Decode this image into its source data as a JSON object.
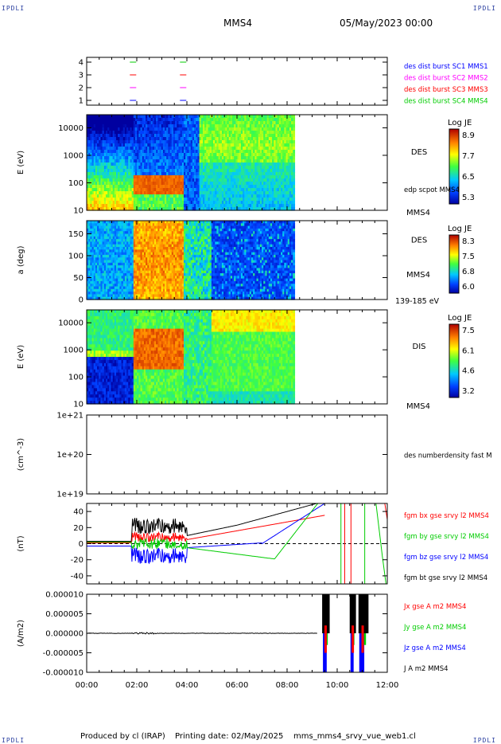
{
  "header": {
    "corner_tl": "IPDLI",
    "corner_tr": "IPDLI",
    "corner_bl": "IPDLI",
    "corner_br": "IPDLI",
    "spacecraft": "MMS4",
    "date": "05/May/2023 00:00"
  },
  "footer": {
    "produced_by": "Produced by cl (IRAP)",
    "printing_date": "Printing date: 02/May/2025",
    "file": "mms_mms4_srvy_vue_web1.cl"
  },
  "chart_data": [
    {
      "type": "line",
      "panel": "burst-availability",
      "yticks": [
        "4",
        "3",
        "2",
        "1"
      ],
      "legend": [
        {
          "label": "des dist burst SC1 MMS1",
          "color": "#0000ff"
        },
        {
          "label": "des dist burst SC2 MMS2",
          "color": "#ff00ff"
        },
        {
          "label": "des dist burst SC3 MMS3",
          "color": "#ff0000"
        },
        {
          "label": "des dist burst SC4 MMS4",
          "color": "#00cc00"
        }
      ],
      "intervals_hours": [
        1.85,
        3.85
      ]
    },
    {
      "type": "heatmap",
      "panel": "des-energy",
      "ylabel": "E (eV)",
      "yticks": [
        "10000",
        "1000",
        "100",
        "10"
      ],
      "ylim": [
        10,
        30000
      ],
      "yscale": "log",
      "right_label": "DES",
      "right_label2": "edp scpot MMS4",
      "right_label3": "MMS4",
      "colorbar": {
        "title": "Log JE",
        "ticks": [
          "8.9",
          "7.7",
          "6.5",
          "5.3"
        ],
        "min": 5.3,
        "max": 8.9
      },
      "data_end_hour": 8.3
    },
    {
      "type": "heatmap",
      "panel": "des-pitch-angle",
      "ylabel": "a (deg)",
      "yticks": [
        "150",
        "100",
        "50",
        "0"
      ],
      "ylim": [
        0,
        180
      ],
      "right_label": "DES",
      "right_label2": "MMS4",
      "right_label3": "139-185 eV",
      "colorbar": {
        "title": "Log JE",
        "ticks": [
          "8.3",
          "7.5",
          "6.8",
          "6.0"
        ],
        "min": 6.0,
        "max": 8.3
      },
      "data_end_hour": 8.3
    },
    {
      "type": "heatmap",
      "panel": "dis-energy",
      "ylabel": "E (eV)",
      "yticks": [
        "10000",
        "1000",
        "100",
        "10"
      ],
      "ylim": [
        10,
        30000
      ],
      "yscale": "log",
      "right_label": "DIS",
      "right_label2": "MMS4",
      "colorbar": {
        "title": "Log JE",
        "ticks": [
          "7.5",
          "6.1",
          "4.6",
          "3.2"
        ],
        "min": 3.2,
        "max": 7.5
      },
      "data_end_hour": 8.3
    },
    {
      "type": "line",
      "panel": "des-density",
      "ylabel": "(cm^-3)",
      "yticks": [
        "1e+21",
        "1e+20",
        "1e+19"
      ],
      "legend": [
        {
          "label": "des numberdensity fast M",
          "color": "#000000"
        }
      ]
    },
    {
      "type": "line",
      "panel": "fgm-b",
      "ylabel": "(nT)",
      "yticks": [
        "40",
        "20",
        "0",
        "-20",
        "-40"
      ],
      "ylim": [
        -50,
        50
      ],
      "legend": [
        {
          "label": "fgm bx gse srvy l2 MMS4",
          "color": "#ff0000"
        },
        {
          "label": "fgm by gse srvy l2 MMS4",
          "color": "#00cc00"
        },
        {
          "label": "fgm bz gse srvy l2 MMS4",
          "color": "#0000ff"
        },
        {
          "label": "fgm bt gse srvy l2 MMS4",
          "color": "#000000"
        }
      ]
    },
    {
      "type": "line",
      "panel": "current-density",
      "ylabel": "(A/m2)",
      "yticks": [
        "0.000010",
        "0.000005",
        "0.000000",
        "-0.000005",
        "-0.000010"
      ],
      "ylim": [
        -1e-05,
        1e-05
      ],
      "legend": [
        {
          "label": "Jx gse A m2 MMS4",
          "color": "#ff0000"
        },
        {
          "label": "Jy gse A m2 MMS4",
          "color": "#00cc00"
        },
        {
          "label": "Jz gse A m2 MMS4",
          "color": "#0000ff"
        },
        {
          "label": "J A m2 MMS4",
          "color": "#000000"
        }
      ],
      "xticks": [
        "00:00",
        "02:00",
        "04:00",
        "06:00",
        "08:00",
        "10:00",
        "12:00"
      ],
      "xlim_hours": [
        0,
        12
      ]
    }
  ]
}
